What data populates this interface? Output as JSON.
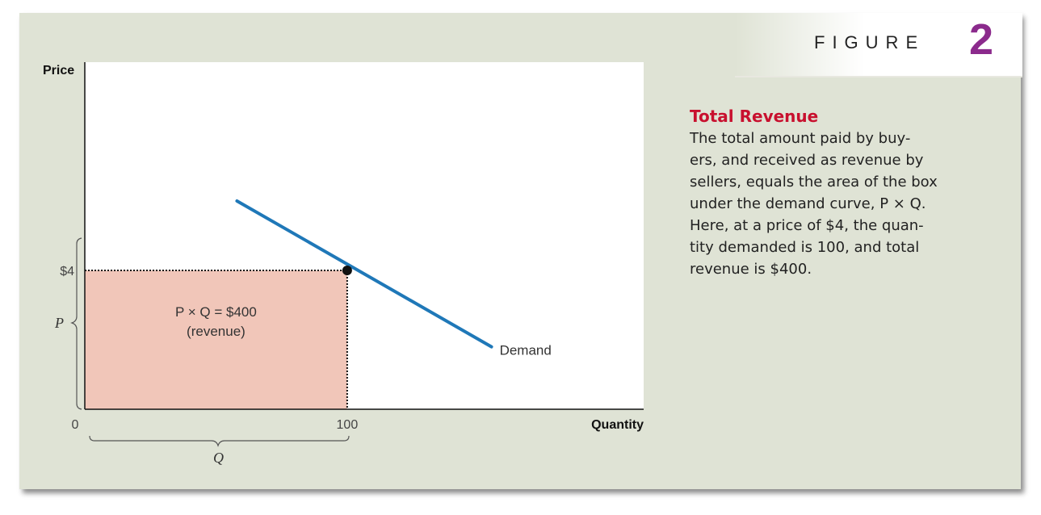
{
  "figure": {
    "word": "FIGURE",
    "number": "2"
  },
  "caption": {
    "title": "Total Revenue",
    "lines": [
      "The total amount paid by buy-",
      "ers, and received as revenue by",
      "sellers, equals the area of the box",
      "under the demand curve, P × Q.",
      "Here, at a price of $4, the quan-",
      "tity demanded is 100, and total",
      "revenue is $400."
    ]
  },
  "chart_data": {
    "type": "line",
    "xlabel": "Quantity",
    "ylabel": "Price",
    "x_ticks": [
      "0",
      "100"
    ],
    "y_ticks": [
      "$4"
    ],
    "series": [
      {
        "name": "Demand",
        "points": [
          [
            58,
            6
          ],
          [
            155,
            1.8
          ]
        ]
      }
    ],
    "highlight_point": {
      "x": 100,
      "y": 4
    },
    "revenue_box": {
      "price": 4,
      "quantity": 100,
      "label": "P × Q = $400",
      "sublabel": "(revenue)"
    },
    "brace_labels": {
      "price": "P",
      "quantity": "Q"
    },
    "xlim": [
      0,
      213
    ],
    "ylim": [
      0,
      10
    ],
    "colors": {
      "demand": "#1f78b8",
      "revenue_box": "#f1c6b9"
    },
    "grid": false
  }
}
